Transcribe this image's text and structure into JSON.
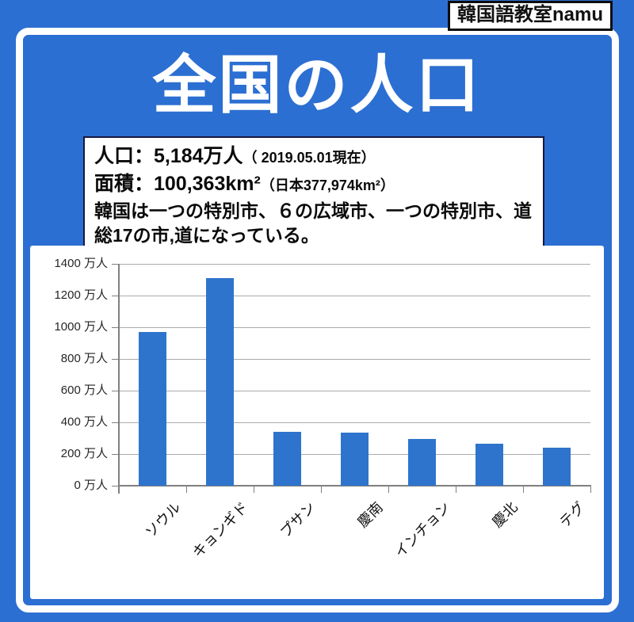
{
  "badge": {
    "label": "韓国語教室namu"
  },
  "title": "全国の人口",
  "info_box": {
    "population_label": "人口：5,184万人",
    "population_note": "（ 2019.05.01現在）",
    "area_label": "面積：100,363km²",
    "area_note": "（日本377,974km²）",
    "description_line1": "韓国は一つの特別市、６の広域市、一つの特別市、道",
    "description_line2": "総17の市,道になっている。"
  },
  "chart_data": {
    "type": "bar",
    "title": "",
    "categories": [
      "ソウル",
      "キョンギド",
      "プサン",
      "慶南",
      "インチョン",
      "慶北",
      "テグ"
    ],
    "values": [
      970,
      1310,
      340,
      335,
      295,
      265,
      240
    ],
    "unit": "万人",
    "xlabel": "",
    "ylabel": "万人",
    "ylim": [
      0,
      1400
    ],
    "y_ticks": [
      0,
      200,
      400,
      600,
      800,
      1000,
      1200,
      1400
    ],
    "y_tick_suffix": " 万人",
    "grid": true,
    "legend_position": "none",
    "bar_color": "#2E74CC"
  },
  "colors": {
    "background": "#2C6FD2",
    "frame": "#FFFFFF",
    "bar": "#2E74CC",
    "gridline": "#ABABAB",
    "axis": "#808080",
    "info_border": "#17173F",
    "text": "#111111"
  }
}
